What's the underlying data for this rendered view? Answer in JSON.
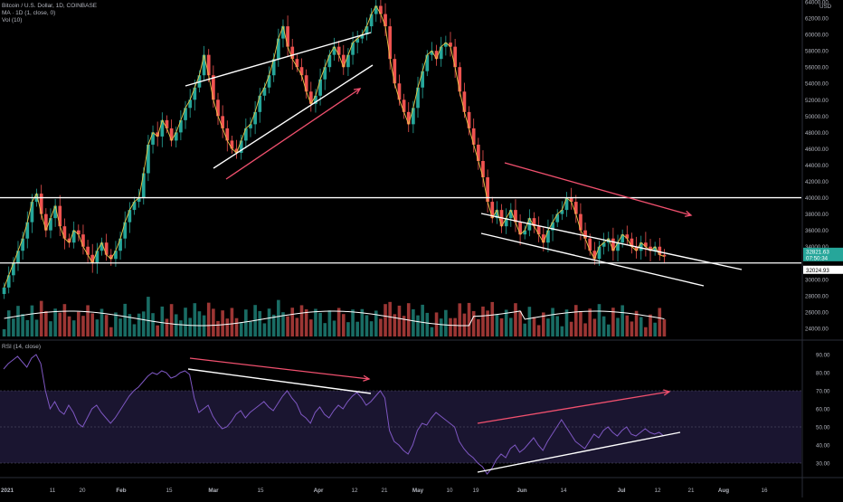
{
  "header": {
    "symbol": "Bitcoin / U.S. Dollar, 1D, COINBASE",
    "ma": "MA · 1D (1, close, 0)",
    "vol": "Vol (10)",
    "rsi": "RSI (14, close)"
  },
  "colors": {
    "up": "#26a69a",
    "down": "#ef5350",
    "ma": "#e8c547",
    "rsi": "#7e57c2",
    "trend": "#ffffff",
    "arrow": "#f0506e",
    "last_price_bg": "#26a69a",
    "rsi_band": "#1a1530"
  },
  "chart_data": [
    {
      "type": "candlestick",
      "title": "Bitcoin / U.S. Dollar, 1D, COINBASE",
      "ylabel": "USD",
      "ylim": [
        23000,
        64000
      ],
      "price_ticks": [
        "64000.00",
        "62000.00",
        "60000.00",
        "58000.00",
        "56000.00",
        "54000.00",
        "52000.00",
        "50000.00",
        "48000.00",
        "46000.00",
        "44000.00",
        "42000.00",
        "40000.00",
        "38000.00",
        "36000.00",
        "34000.00",
        "30000.00",
        "28000.00",
        "26000.00",
        "24000.00"
      ],
      "x_labels": [
        "2021",
        "11",
        "20",
        "Feb",
        "15",
        "Mar",
        "15",
        "Apr",
        "12",
        "21",
        "May",
        "10",
        "19",
        "Jun",
        "14",
        "Jul",
        "12",
        "21",
        "Aug",
        "16"
      ],
      "horizontal_levels": [
        40000,
        32000
      ],
      "last_price": "32821.63",
      "last_price_sub": "07:50:34",
      "level_label": "32024.93",
      "close_series": [
        29000,
        30500,
        32000,
        33500,
        35000,
        37000,
        39500,
        40500,
        38000,
        36000,
        37500,
        39000,
        36500,
        35000,
        34500,
        36000,
        35500,
        34000,
        33000,
        32000,
        33500,
        34500,
        33000,
        32500,
        33500,
        35000,
        37000,
        38500,
        39500,
        40000,
        43000,
        46500,
        48000,
        47500,
        49500,
        48500,
        47000,
        48000,
        49500,
        51000,
        52000,
        53500,
        55000,
        57500,
        55000,
        52000,
        50000,
        48500,
        47000,
        46000,
        45500,
        47000,
        48500,
        49000,
        50500,
        52500,
        53500,
        55000,
        57000,
        59500,
        61000,
        58500,
        57000,
        56000,
        55000,
        53000,
        51500,
        52500,
        54500,
        56000,
        57500,
        58500,
        57500,
        56000,
        57500,
        59000,
        59500,
        60000,
        61000,
        62500,
        63500,
        62500,
        61000,
        57000,
        54000,
        52000,
        50500,
        49000,
        51000,
        53500,
        55500,
        57500,
        58000,
        57000,
        58500,
        59000,
        58500,
        56000,
        53000,
        50500,
        48500,
        46500,
        44500,
        42500,
        39500,
        37500,
        38500,
        36500,
        37500,
        38500,
        37000,
        35500,
        36000,
        37500,
        36500,
        35500,
        34500,
        36000,
        37000,
        38000,
        38500,
        40000,
        39500,
        38000,
        36000,
        35000,
        33500,
        32500,
        34000,
        34500,
        35000,
        33500,
        34500,
        35500,
        35000,
        34000,
        33500,
        34500,
        34000,
        33500,
        34000,
        33000,
        32800
      ],
      "trend_lines": [
        "rising channel Feb–Apr",
        "descending channel May–Jul"
      ],
      "annotations": [
        "red arrow rising Mar–Apr",
        "red arrow falling Jun–Jul"
      ]
    },
    {
      "type": "line",
      "title": "RSI (14, close)",
      "ylim": [
        25,
        95
      ],
      "rsi_ticks": [
        "90.00",
        "80.00",
        "70.00",
        "60.00",
        "50.00",
        "40.00",
        "30.00"
      ],
      "band": [
        30,
        70
      ],
      "series": [
        {
          "values": [
            82,
            85,
            87,
            89,
            86,
            83,
            88,
            90,
            85,
            70,
            60,
            64,
            59,
            57,
            62,
            58,
            52,
            50,
            55,
            60,
            62,
            58,
            55,
            52,
            55,
            59,
            63,
            67,
            70,
            72,
            75,
            78,
            80,
            79,
            81,
            80,
            77,
            78,
            80,
            81,
            79,
            66,
            58,
            60,
            62,
            56,
            52,
            49,
            50,
            53,
            57,
            59,
            55,
            58,
            60,
            62,
            64,
            61,
            59,
            63,
            67,
            70,
            66,
            63,
            57,
            55,
            52,
            58,
            61,
            57,
            55,
            59,
            62,
            60,
            64,
            67,
            69,
            66,
            62,
            64,
            67,
            70,
            66,
            48,
            42,
            40,
            37,
            35,
            40,
            48,
            52,
            51,
            55,
            58,
            56,
            54,
            52,
            50,
            42,
            38,
            35,
            33,
            30,
            28,
            24,
            27,
            32,
            35,
            33,
            38,
            40,
            36,
            38,
            41,
            44,
            40,
            37,
            42,
            46,
            50,
            54,
            50,
            46,
            42,
            40,
            38,
            42,
            46,
            44,
            48,
            50,
            47,
            45,
            48,
            50,
            46,
            45,
            47,
            49,
            47,
            46,
            47,
            45
          ]
        }
      ]
    }
  ]
}
